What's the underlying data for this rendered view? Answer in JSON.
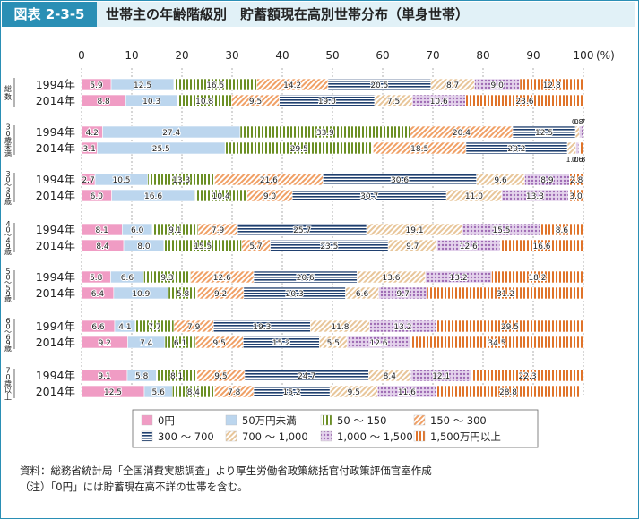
{
  "header": {
    "figure_label": "図表 2-3-5",
    "title": "世帯主の年齢階級別　貯蓄額現在高別世帯分布（単身世帯）"
  },
  "notes": {
    "source": "資料：総務省統計局「全国消費実態調査」より厚生労働省政策統括官付政策評価官室作成",
    "note": "（注）「0円」には貯蓄現在高不詳の世帯を含む。"
  },
  "chart_data": {
    "type": "bar",
    "stacked": "horizontal-100%",
    "x_ticks": [
      "0",
      "10",
      "20",
      "30",
      "40",
      "50",
      "60",
      "70",
      "80",
      "90",
      "100"
    ],
    "x_unit": "(%)",
    "xlim": [
      0,
      100
    ],
    "legend_position": "bottom",
    "categories": [
      {
        "label": "0円",
        "color": "#f09cc4",
        "pattern": "solid"
      },
      {
        "label": "50万円未満",
        "color": "#bcd6ee",
        "pattern": "solid"
      },
      {
        "label": "50 ～ 150",
        "color": "#6b8f24",
        "pattern": "vstripe"
      },
      {
        "label": "150 ～ 300",
        "color": "#f0a066",
        "pattern": "diag"
      },
      {
        "label": "300 ～ 700",
        "color": "#1f3f6f",
        "pattern": "hstripe"
      },
      {
        "label": "700 ～ 1,000",
        "color": "#e8c69a",
        "pattern": "diag"
      },
      {
        "label": "1,000 ～ 1,500",
        "color": "#9e6bb3",
        "pattern": "dots"
      },
      {
        "label": "1,500万円以上",
        "color": "#e0742a",
        "pattern": "vstripe"
      }
    ],
    "groups": [
      {
        "label": "総数",
        "rows": [
          {
            "year": "1994年",
            "values": [
              5.9,
              12.5,
              16.5,
              14.2,
              20.5,
              8.7,
              9.0,
              12.8
            ]
          },
          {
            "year": "2014年",
            "values": [
              8.8,
              10.3,
              10.8,
              9.5,
              19.0,
              7.5,
              10.6,
              23.6
            ]
          }
        ]
      },
      {
        "label": "30歳未満",
        "rows": [
          {
            "year": "1994年",
            "values": [
              4.2,
              27.4,
              33.9,
              20.4,
              12.5,
              0.8,
              0.7,
              0.0
            ]
          },
          {
            "year": "2014年",
            "values": [
              3.1,
              25.5,
              29.5,
              18.5,
              20.2,
              1.7,
              0.6,
              0.8
            ]
          }
        ]
      },
      {
        "label": "30～39歳",
        "rows": [
          {
            "year": "1994年",
            "values": [
              2.7,
              10.5,
              13.3,
              21.6,
              30.6,
              9.6,
              8.9,
              2.8
            ]
          },
          {
            "year": "2014年",
            "values": [
              6.0,
              16.6,
              10.4,
              9.0,
              30.7,
              11.0,
              13.3,
              3.0
            ]
          }
        ]
      },
      {
        "label": "40～49歳",
        "rows": [
          {
            "year": "1994年",
            "values": [
              8.1,
              6.0,
              9.1,
              7.9,
              25.7,
              19.1,
              15.5,
              8.6
            ]
          },
          {
            "year": "2014年",
            "values": [
              8.4,
              8.0,
              15.5,
              5.7,
              23.5,
              9.7,
              12.6,
              16.6
            ]
          }
        ]
      },
      {
        "label": "50～59歳",
        "rows": [
          {
            "year": "1994年",
            "values": [
              5.8,
              6.6,
              9.3,
              12.6,
              20.6,
              13.6,
              13.2,
              18.2
            ]
          },
          {
            "year": "2014年",
            "values": [
              6.4,
              10.9,
              5.8,
              9.2,
              20.3,
              6.6,
              9.7,
              31.2
            ]
          }
        ]
      },
      {
        "label": "60～69歳",
        "rows": [
          {
            "year": "1994年",
            "values": [
              6.6,
              4.1,
              7.7,
              7.9,
              19.3,
              11.8,
              13.2,
              29.5
            ]
          },
          {
            "year": "2014年",
            "values": [
              9.2,
              7.4,
              6.1,
              9.5,
              15.2,
              5.5,
              12.6,
              34.5
            ]
          }
        ]
      },
      {
        "label": "70歳以上",
        "rows": [
          {
            "year": "1994年",
            "values": [
              9.1,
              5.8,
              8.1,
              9.5,
              24.7,
              8.4,
              12.1,
              22.3
            ]
          },
          {
            "year": "2014年",
            "values": [
              12.5,
              5.6,
              8.4,
              7.8,
              15.2,
              9.5,
              11.6,
              28.8
            ]
          }
        ]
      }
    ]
  }
}
